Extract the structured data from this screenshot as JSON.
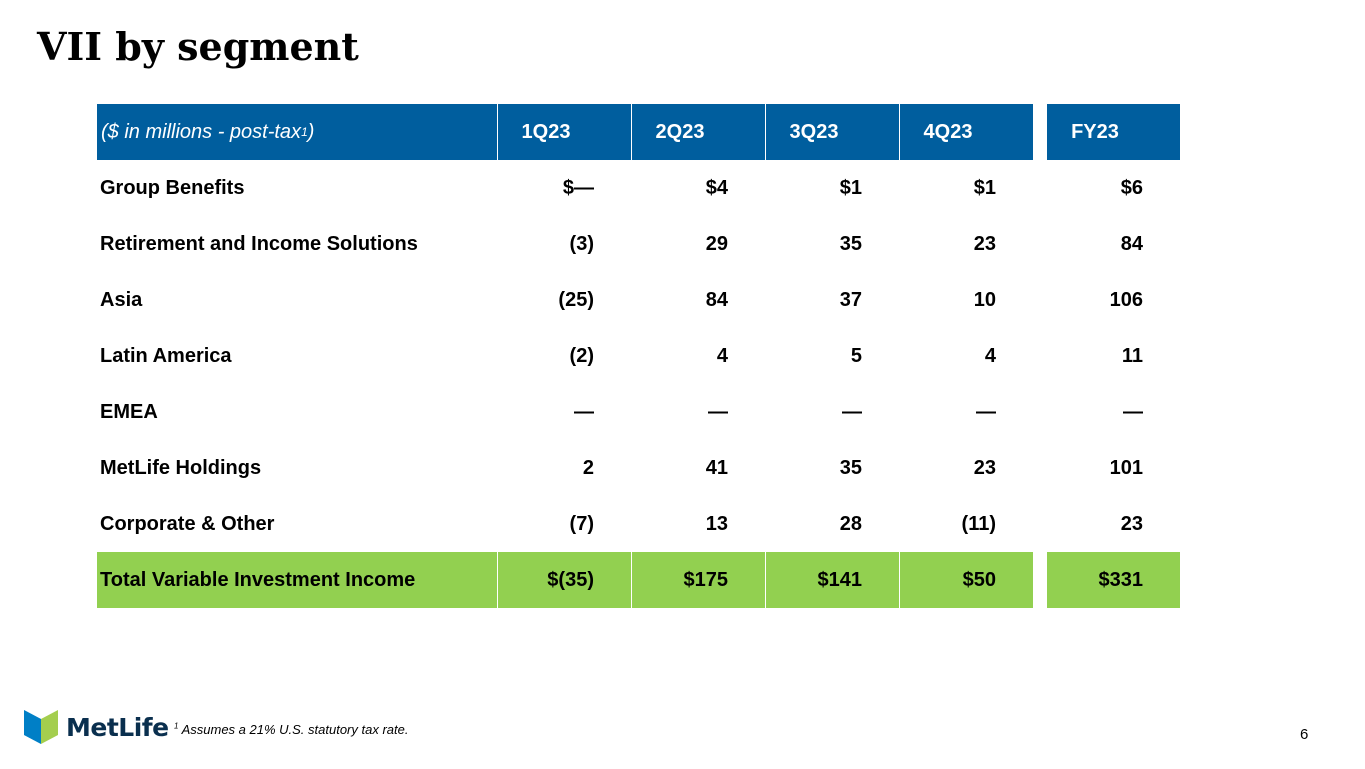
{
  "title": "VII by segment",
  "table": {
    "header": {
      "label_main": "($ in millions - post-tax",
      "label_sup": "1",
      "label_close": ")",
      "columns": [
        "1Q23",
        "2Q23",
        "3Q23",
        "4Q23",
        "FY23"
      ]
    },
    "rows": [
      {
        "label": "Group Benefits",
        "values": [
          "$—",
          "$4",
          "$1",
          "$1",
          "$6"
        ]
      },
      {
        "label": "Retirement and Income Solutions",
        "values": [
          "(3)",
          "29",
          "35",
          "23",
          "84"
        ]
      },
      {
        "label": "Asia",
        "values": [
          "(25)",
          "84",
          "37",
          "10",
          "106"
        ]
      },
      {
        "label": "Latin America",
        "values": [
          "(2)",
          "4",
          "5",
          "4",
          "11"
        ]
      },
      {
        "label": "EMEA",
        "values": [
          "—",
          "—",
          "—",
          "—",
          "—"
        ]
      },
      {
        "label": "MetLife Holdings",
        "values": [
          "2",
          "41",
          "35",
          "23",
          "101"
        ]
      },
      {
        "label": "Corporate & Other",
        "values": [
          "(7)",
          "13",
          "28",
          "(11)",
          "23"
        ]
      }
    ],
    "total": {
      "label": "Total Variable Investment Income",
      "values": [
        "$(35)",
        "$175",
        "$141",
        "$50",
        "$331"
      ]
    }
  },
  "footer": {
    "logo_text": "MetLife",
    "footnote_sup": "1",
    "footnote_text": " Assumes a 21% U.S. statutory tax rate.",
    "page_number": "6"
  },
  "colors": {
    "header_bg": "#005e9e",
    "total_bg": "#92d050",
    "logo_blue": "#0090da",
    "logo_green": "#a4ce4e"
  }
}
